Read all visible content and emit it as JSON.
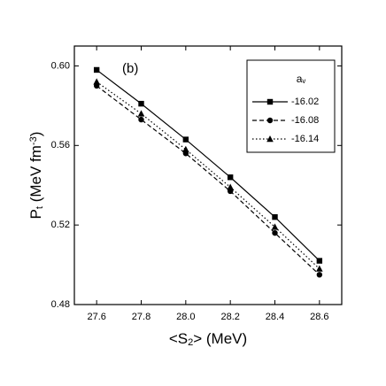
{
  "chart_data": {
    "type": "line",
    "annotation": "(b)",
    "x_label": [
      {
        "text": "<S"
      },
      {
        "text": "2",
        "shift": "sub"
      },
      {
        "text": "> (MeV)"
      }
    ],
    "y_label": [
      {
        "text": "P"
      },
      {
        "text": "t",
        "shift": "sub"
      },
      {
        "text": " (MeV fm"
      },
      {
        "text": "-3",
        "shift": "super"
      },
      {
        "text": ")"
      }
    ],
    "legend_title": [
      {
        "text": "a"
      },
      {
        "text": "v",
        "shift": "sub"
      }
    ],
    "x": [
      27.6,
      27.8,
      28.0,
      28.2,
      28.4,
      28.6
    ],
    "series": [
      {
        "name": "-16.02",
        "color": "#000000",
        "dash": "solid",
        "marker": "square",
        "values": [
          0.598,
          0.581,
          0.563,
          0.544,
          0.524,
          0.502
        ]
      },
      {
        "name": "-16.08",
        "color": "#000000",
        "dash": "dashed",
        "marker": "circle",
        "values": [
          0.59,
          0.573,
          0.556,
          0.537,
          0.516,
          0.495
        ]
      },
      {
        "name": "-16.14",
        "color": "#000000",
        "dash": "dotted",
        "marker": "triangle",
        "values": [
          0.592,
          0.576,
          0.558,
          0.539,
          0.519,
          0.498
        ]
      }
    ],
    "xlim": [
      27.5,
      28.7
    ],
    "ylim": [
      0.48,
      0.61
    ],
    "xticks": [
      27.6,
      27.8,
      {
        "value": 28,
        "label": "28.0"
      },
      28.2,
      28.4,
      28.6
    ],
    "yticks": [
      {
        "value": 0.6,
        "label": "0.60"
      },
      0.56,
      0.52,
      0.48
    ],
    "legend_position": "upper right"
  }
}
